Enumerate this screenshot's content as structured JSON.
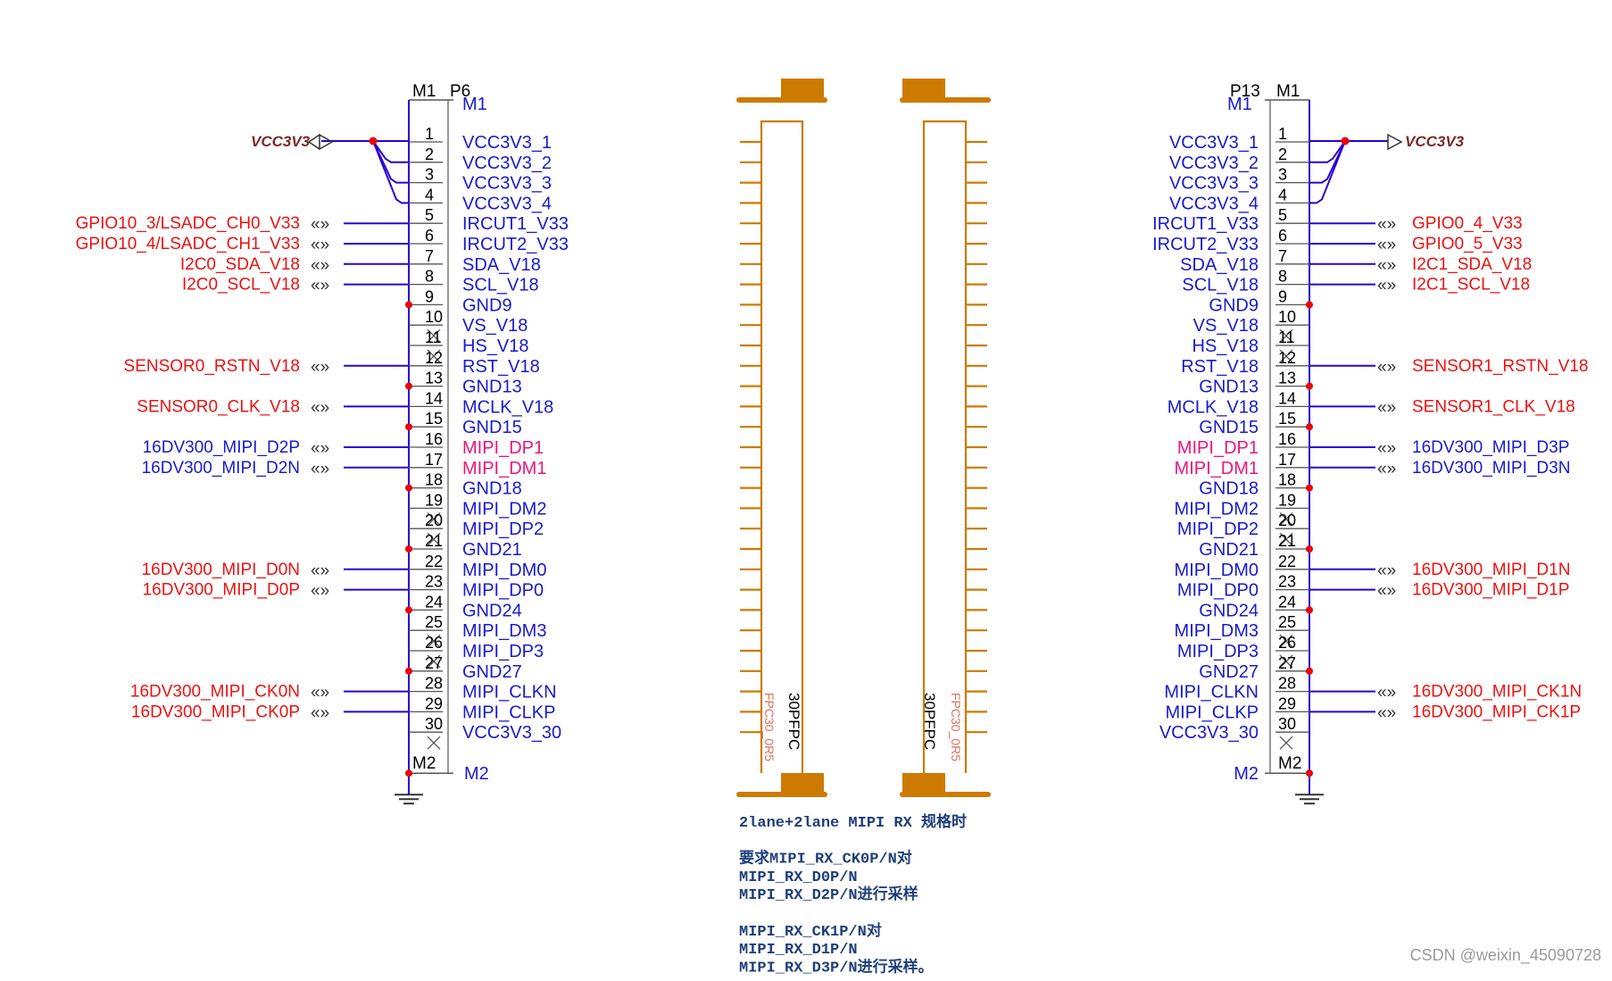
{
  "colors": {
    "wire": "#2a00d4",
    "pin_name": "#1a1acc",
    "net_red": "#ee1111",
    "net_blue": "#1a1acc",
    "pink": "#e8167a",
    "fpc": "#cc7a00",
    "pin_stub": "#555555",
    "junction": "#ee0000",
    "power": "#7a2a2a",
    "fpc_sub": "#e07060"
  },
  "left": {
    "ref_m1": "M1",
    "designator": "P6",
    "top_mount": "M1",
    "bottom_mount_num": "M2",
    "bottom_mount": "M2",
    "power_net": "VCC3V3"
  },
  "right": {
    "designator": "P13",
    "ref_m1": "M1",
    "top_mount": "M1",
    "bottom_mount_num": "M2",
    "bottom_mount": "M2",
    "power_net": "VCC3V3"
  },
  "pins": [
    {
      "num": "1",
      "name": "VCC3V3_1",
      "pink": false,
      "gnd": false,
      "nc": false
    },
    {
      "num": "2",
      "name": "VCC3V3_2",
      "pink": false,
      "gnd": false,
      "nc": false
    },
    {
      "num": "3",
      "name": "VCC3V3_3",
      "pink": false,
      "gnd": false,
      "nc": false
    },
    {
      "num": "4",
      "name": "VCC3V3_4",
      "pink": false,
      "gnd": false,
      "nc": false
    },
    {
      "num": "5",
      "name": "IRCUT1_V33",
      "pink": false,
      "gnd": false,
      "nc": false
    },
    {
      "num": "6",
      "name": "IRCUT2_V33",
      "pink": false,
      "gnd": false,
      "nc": false
    },
    {
      "num": "7",
      "name": "SDA_V18",
      "pink": false,
      "gnd": false,
      "nc": false
    },
    {
      "num": "8",
      "name": "SCL_V18",
      "pink": false,
      "gnd": false,
      "nc": false
    },
    {
      "num": "9",
      "name": "GND9",
      "pink": false,
      "gnd": true,
      "nc": false
    },
    {
      "num": "10",
      "name": "VS_V18",
      "pink": false,
      "gnd": false,
      "nc": true
    },
    {
      "num": "11",
      "name": "HS_V18",
      "pink": false,
      "gnd": false,
      "nc": true
    },
    {
      "num": "12",
      "name": "RST_V18",
      "pink": false,
      "gnd": false,
      "nc": false
    },
    {
      "num": "13",
      "name": "GND13",
      "pink": false,
      "gnd": true,
      "nc": false
    },
    {
      "num": "14",
      "name": "MCLK_V18",
      "pink": false,
      "gnd": false,
      "nc": false
    },
    {
      "num": "15",
      "name": "GND15",
      "pink": false,
      "gnd": true,
      "nc": false
    },
    {
      "num": "16",
      "name": "MIPI_DP1",
      "pink": true,
      "gnd": false,
      "nc": false
    },
    {
      "num": "17",
      "name": "MIPI_DM1",
      "pink": true,
      "gnd": false,
      "nc": false
    },
    {
      "num": "18",
      "name": "GND18",
      "pink": false,
      "gnd": true,
      "nc": false
    },
    {
      "num": "19",
      "name": "MIPI_DM2",
      "pink": false,
      "gnd": false,
      "nc": true
    },
    {
      "num": "20",
      "name": "MIPI_DP2",
      "pink": false,
      "gnd": false,
      "nc": true
    },
    {
      "num": "21",
      "name": "GND21",
      "pink": false,
      "gnd": true,
      "nc": false
    },
    {
      "num": "22",
      "name": "MIPI_DM0",
      "pink": false,
      "gnd": false,
      "nc": false
    },
    {
      "num": "23",
      "name": "MIPI_DP0",
      "pink": false,
      "gnd": false,
      "nc": false
    },
    {
      "num": "24",
      "name": "GND24",
      "pink": false,
      "gnd": true,
      "nc": false
    },
    {
      "num": "25",
      "name": "MIPI_DM3",
      "pink": false,
      "gnd": false,
      "nc": true
    },
    {
      "num": "26",
      "name": "MIPI_DP3",
      "pink": false,
      "gnd": false,
      "nc": true
    },
    {
      "num": "27",
      "name": "GND27",
      "pink": false,
      "gnd": true,
      "nc": false
    },
    {
      "num": "28",
      "name": "MIPI_CLKN",
      "pink": false,
      "gnd": false,
      "nc": false
    },
    {
      "num": "29",
      "name": "MIPI_CLKP",
      "pink": false,
      "gnd": false,
      "nc": false
    },
    {
      "num": "30",
      "name": "VCC3V3_30",
      "pink": false,
      "gnd": false,
      "nc": true
    }
  ],
  "left_nets": [
    {
      "pin": 5,
      "label": "GPIO10_3/LSADC_CH0_V33",
      "color": "red"
    },
    {
      "pin": 6,
      "label": "GPIO10_4/LSADC_CH1_V33",
      "color": "red"
    },
    {
      "pin": 7,
      "label": "I2C0_SDA_V18",
      "color": "red"
    },
    {
      "pin": 8,
      "label": "I2C0_SCL_V18",
      "color": "red"
    },
    {
      "pin": 12,
      "label": "SENSOR0_RSTN_V18",
      "color": "red"
    },
    {
      "pin": 14,
      "label": "SENSOR0_CLK_V18",
      "color": "red"
    },
    {
      "pin": 16,
      "label": "16DV300_MIPI_D2P",
      "color": "blue"
    },
    {
      "pin": 17,
      "label": "16DV300_MIPI_D2N",
      "color": "blue"
    },
    {
      "pin": 22,
      "label": "16DV300_MIPI_D0N",
      "color": "red"
    },
    {
      "pin": 23,
      "label": "16DV300_MIPI_D0P",
      "color": "red"
    },
    {
      "pin": 28,
      "label": "16DV300_MIPI_CK0N",
      "color": "red"
    },
    {
      "pin": 29,
      "label": "16DV300_MIPI_CK0P",
      "color": "red"
    }
  ],
  "right_nets": [
    {
      "pin": 5,
      "label": "GPIO0_4_V33",
      "color": "red"
    },
    {
      "pin": 6,
      "label": "GPIO0_5_V33",
      "color": "red"
    },
    {
      "pin": 7,
      "label": "I2C1_SDA_V18",
      "color": "red"
    },
    {
      "pin": 8,
      "label": "I2C1_SCL_V18",
      "color": "red"
    },
    {
      "pin": 12,
      "label": "SENSOR1_RSTN_V18",
      "color": "red"
    },
    {
      "pin": 14,
      "label": "SENSOR1_CLK_V18",
      "color": "red"
    },
    {
      "pin": 16,
      "label": "16DV300_MIPI_D3P",
      "color": "blue"
    },
    {
      "pin": 17,
      "label": "16DV300_MIPI_D3N",
      "color": "blue"
    },
    {
      "pin": 22,
      "label": "16DV300_MIPI_D1N",
      "color": "red"
    },
    {
      "pin": 23,
      "label": "16DV300_MIPI_D1P",
      "color": "red"
    },
    {
      "pin": 28,
      "label": "16DV300_MIPI_CK1N",
      "color": "red"
    },
    {
      "pin": 29,
      "label": "16DV300_MIPI_CK1P",
      "color": "red"
    }
  ],
  "fpc": {
    "left_name": "30PFPC",
    "left_sub": "FPC30_0R5",
    "right_name": "30PFPC",
    "right_sub": "FPC30_0R5"
  },
  "note": [
    "2lane+2lane MIPI RX 规格时",
    "",
    "要求MIPI_RX_CK0P/N对",
    "MIPI_RX_D0P/N",
    "MIPI_RX_D2P/N进行采样",
    "",
    "MIPI_RX_CK1P/N对",
    "MIPI_RX_D1P/N",
    "MIPI_RX_D3P/N进行采样。"
  ],
  "watermark": "CSDN @weixin_45090728"
}
